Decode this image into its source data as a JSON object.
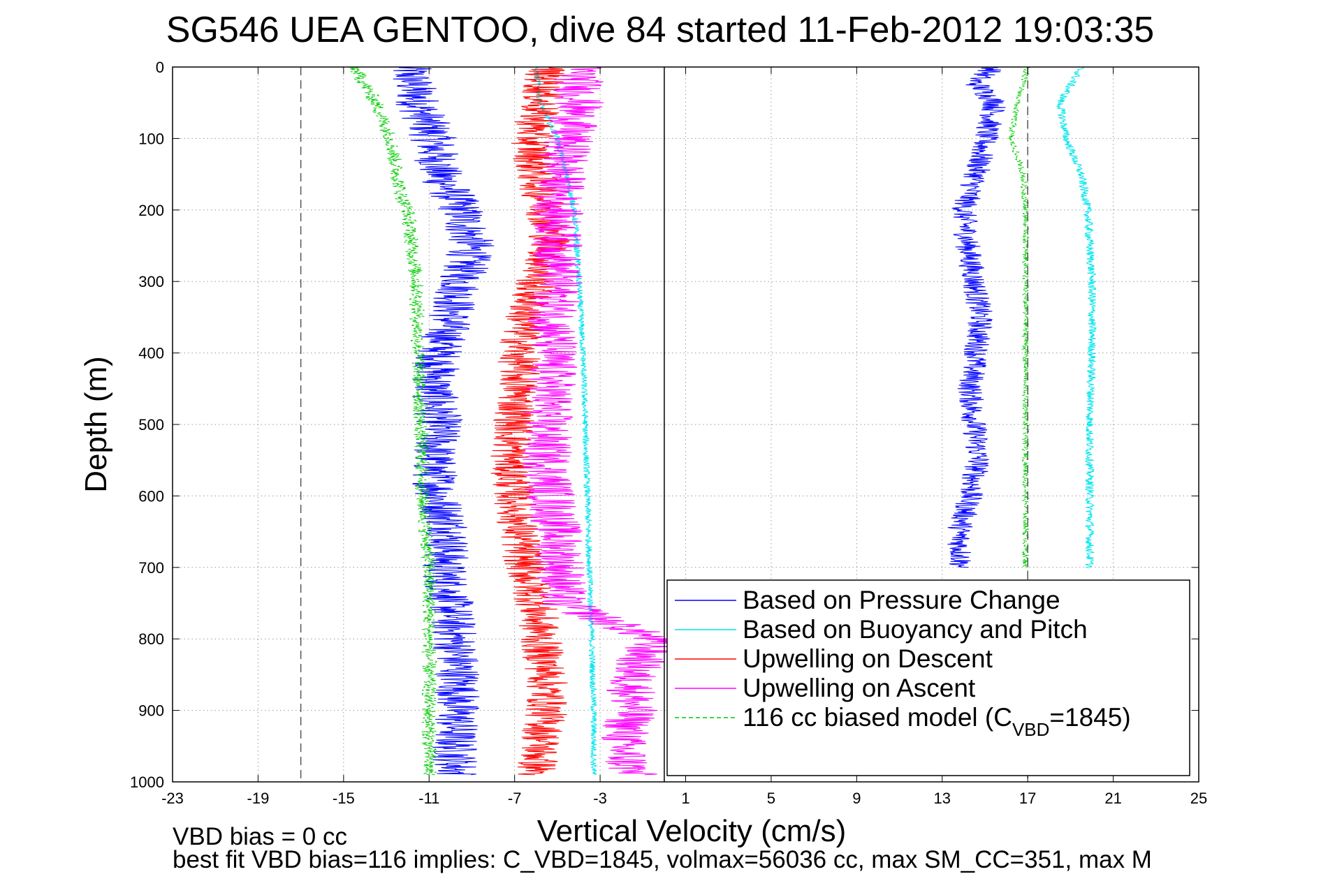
{
  "chart_data": {
    "type": "line",
    "title": "SG546 UEA GENTOO, dive 84 started 11-Feb-2012 19:03:35",
    "xlabel": "Vertical Velocity (cm/s)",
    "ylabel": "Depth (m)",
    "xlim": [
      -23,
      25
    ],
    "ylim": [
      0,
      1000
    ],
    "y_reversed": true,
    "grid": true,
    "legend_position": "bottom-right",
    "xticks": [
      "-23",
      "-19",
      "-15",
      "-11",
      "-7",
      "-3",
      "1",
      "5",
      "9",
      "13",
      "17",
      "21",
      "25"
    ],
    "yticks": [
      "0",
      "100",
      "200",
      "300",
      "400",
      "500",
      "600",
      "700",
      "800",
      "900",
      "1000"
    ],
    "ref_lines": [
      {
        "x": 0,
        "style": "solid",
        "color": "#000000"
      },
      {
        "x": -17,
        "style": "dashed",
        "color": "#555555"
      },
      {
        "x": 17,
        "style": "dashed",
        "color": "#555555"
      }
    ],
    "series": [
      {
        "name": "Based on Pressure Change",
        "color": "#0000ff",
        "descent": {
          "depth": [
            0,
            50,
            100,
            150,
            200,
            250,
            300,
            350,
            400,
            450,
            500,
            550,
            600,
            650,
            700,
            750,
            800,
            850,
            900,
            950,
            990
          ],
          "velocity": [
            -12,
            -11.5,
            -10.8,
            -10.5,
            -9.5,
            -9.0,
            -9.5,
            -10.0,
            -10.5,
            -10.8,
            -10.5,
            -10.8,
            -10.6,
            -10.0,
            -10.3,
            -10.0,
            -9.8,
            -9.6,
            -9.7,
            -9.8,
            -9.7
          ]
        },
        "ascent": {
          "depth": [
            0,
            20,
            50,
            100,
            150,
            200,
            250,
            300,
            350,
            400,
            450,
            500,
            550,
            600,
            650,
            700
          ],
          "velocity": [
            15.5,
            14.5,
            15.5,
            15.0,
            14.6,
            14.0,
            14.2,
            14.5,
            14.8,
            14.6,
            14.3,
            14.5,
            14.7,
            14.3,
            13.8,
            13.9
          ],
          "noise": 0.6
        }
      },
      {
        "name": "Based on Buoyancy and Pitch",
        "color": "#00e5ee",
        "descent": {
          "depth": [
            0,
            50,
            100,
            200,
            300,
            400,
            500,
            600,
            700,
            800,
            900,
            990
          ],
          "velocity": [
            -6.0,
            -5.8,
            -5.0,
            -4.2,
            -4.0,
            -3.8,
            -3.7,
            -3.6,
            -3.5,
            -3.4,
            -3.3,
            -3.3
          ]
        },
        "ascent": {
          "depth": [
            0,
            50,
            100,
            150,
            200,
            300,
            400,
            500,
            600,
            700
          ],
          "velocity": [
            19.5,
            18.5,
            18.8,
            19.5,
            19.8,
            20.0,
            20.0,
            19.9,
            19.9,
            19.9
          ],
          "noise": 0.2
        }
      },
      {
        "name": "Upwelling on Descent",
        "color": "#ff0000",
        "descent": {
          "depth": [
            0,
            50,
            100,
            150,
            200,
            250,
            300,
            350,
            400,
            450,
            500,
            550,
            600,
            650,
            700,
            750,
            800,
            850,
            900,
            950,
            990
          ],
          "velocity": [
            -5.5,
            -5.8,
            -6.2,
            -6.0,
            -5.5,
            -5.3,
            -6.0,
            -6.5,
            -6.8,
            -6.8,
            -7.0,
            -7.2,
            -7.0,
            -6.8,
            -6.5,
            -6.0,
            -5.8,
            -5.5,
            -5.5,
            -5.8,
            -6.0
          ]
        }
      },
      {
        "name": "Upwelling on Ascent",
        "color": "#ff00ff",
        "descent": {
          "depth": [
            0,
            50,
            100,
            150,
            200,
            250,
            300,
            350,
            400,
            450,
            500,
            550,
            600,
            650,
            700,
            750,
            800,
            850,
            900,
            950,
            990
          ],
          "velocity": [
            -4.0,
            -4.0,
            -4.5,
            -4.8,
            -5.0,
            -5.0,
            -5.0,
            -5.2,
            -5.2,
            -5.3,
            -5.5,
            -5.5,
            -5.3,
            -5.0,
            -4.8,
            -4.8,
            -0.5,
            -1.5,
            -1.5,
            -2.0,
            -1.5
          ]
        }
      },
      {
        "name": "116 cc biased model (C",
        "label_sub": "VBD",
        "label_tail": "=1845)",
        "color": "#00cc00",
        "dashed": true,
        "descent": {
          "depth": [
            0,
            50,
            100,
            150,
            180,
            200,
            250,
            300,
            400,
            500,
            600,
            700,
            800,
            900,
            990
          ],
          "velocity": [
            -14.5,
            -13.5,
            -12.8,
            -12.5,
            -12.3,
            -12.0,
            -11.8,
            -11.6,
            -11.5,
            -11.4,
            -11.3,
            -11.0,
            -11.0,
            -11.0,
            -11.0
          ]
        },
        "ascent": {
          "depth": [
            0,
            50,
            100,
            150,
            200,
            300,
            400,
            500,
            600,
            700
          ],
          "velocity": [
            17.0,
            16.5,
            16.2,
            16.8,
            16.9,
            16.9,
            16.9,
            16.9,
            16.9,
            16.9
          ],
          "noise": 0.15
        }
      }
    ]
  },
  "footer": {
    "line1": "VBD bias = 0 cc",
    "line2": "best fit VBD bias=116 implies: C_VBD=1845, volmax=56036 cc, max SM_CC=351, max M"
  }
}
